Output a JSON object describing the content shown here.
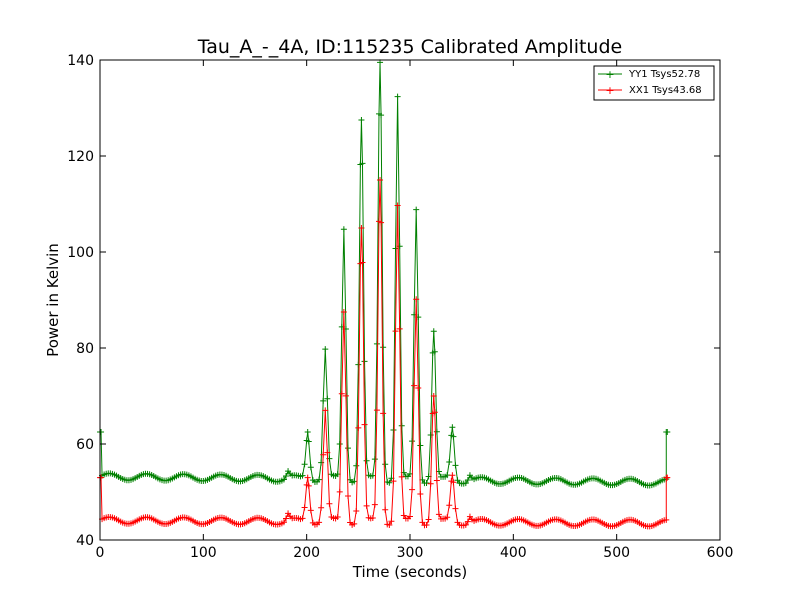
{
  "chart_data": {
    "type": "line",
    "title": "Tau_A_-_4A, ID:115235 Calibrated Amplitude",
    "xlabel": "Time (seconds)",
    "ylabel": "Power in Kelvin",
    "xlim": [
      0,
      600
    ],
    "ylim": [
      40,
      140
    ],
    "xticks": [
      0,
      100,
      200,
      300,
      400,
      500,
      600
    ],
    "yticks": [
      40,
      60,
      80,
      100,
      120,
      140
    ],
    "xtick_labels": [
      "0",
      "100",
      "200",
      "300",
      "400",
      "500",
      "600"
    ],
    "ytick_labels": [
      "40",
      "60",
      "80",
      "100",
      "120",
      "140"
    ],
    "grid": false,
    "legend_position": "top-right",
    "colors": {
      "YY1": "#008000",
      "XX1": "#ff0000"
    },
    "sample_interval_s": 2,
    "series": [
      {
        "name": "YY1 Tsys52.78",
        "color": "#008000",
        "marker": "+",
        "baseline": 53.2,
        "baseline_end": 52.0,
        "ripple_amplitude": 0.7,
        "ripple_period_s": 36,
        "start_value": 62.5,
        "end_value": 62.5,
        "start_time": 1,
        "end_time": 548,
        "peaks": [
          {
            "t": 182,
            "peak": 54.5,
            "width_s": 1.5
          },
          {
            "t": 201,
            "peak": 62.5,
            "width_s": 2
          },
          {
            "t": 218,
            "peak": 80,
            "width_s": 2
          },
          {
            "t": 236,
            "peak": 105.5,
            "width_s": 2
          },
          {
            "t": 253,
            "peak": 127.5,
            "width_s": 2
          },
          {
            "t": 271,
            "peak": 139.5,
            "width_s": 2
          },
          {
            "t": 288,
            "peak": 133,
            "width_s": 2
          },
          {
            "t": 306,
            "peak": 109.5,
            "width_s": 2
          },
          {
            "t": 323,
            "peak": 83.5,
            "width_s": 2
          },
          {
            "t": 341,
            "peak": 63.5,
            "width_s": 2
          },
          {
            "t": 358,
            "peak": 54.5,
            "width_s": 1.5
          }
        ]
      },
      {
        "name": "XX1 Tsys43.68",
        "color": "#ff0000",
        "marker": "+",
        "baseline": 44.1,
        "baseline_end": 43.5,
        "ripple_amplitude": 0.7,
        "ripple_period_s": 36,
        "start_value": 53,
        "end_value": 53,
        "start_time": 1,
        "end_time": 548,
        "peaks": [
          {
            "t": 182,
            "peak": 45.5,
            "width_s": 1.5
          },
          {
            "t": 201,
            "peak": 53,
            "width_s": 2
          },
          {
            "t": 218,
            "peak": 67,
            "width_s": 2
          },
          {
            "t": 236,
            "peak": 88,
            "width_s": 2
          },
          {
            "t": 253,
            "peak": 105,
            "width_s": 2
          },
          {
            "t": 271,
            "peak": 115,
            "width_s": 2
          },
          {
            "t": 288,
            "peak": 110,
            "width_s": 2
          },
          {
            "t": 306,
            "peak": 90.5,
            "width_s": 2
          },
          {
            "t": 323,
            "peak": 70,
            "width_s": 2
          },
          {
            "t": 341,
            "peak": 53.5,
            "width_s": 2
          },
          {
            "t": 358,
            "peak": 45.5,
            "width_s": 1.5
          }
        ]
      }
    ]
  }
}
